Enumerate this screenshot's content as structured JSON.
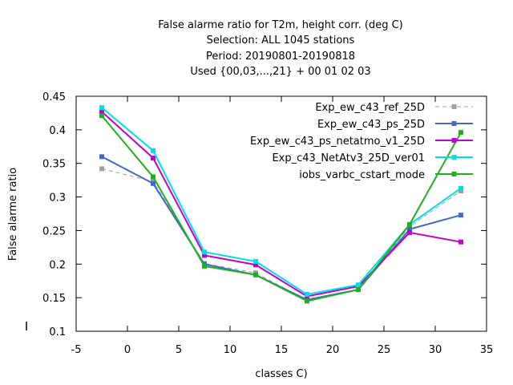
{
  "chart_data": {
    "type": "line",
    "title_lines": [
      "False alarme ratio  for T2m, height corr. (deg C)",
      "Selection: ALL    1045 stations",
      "Period: 20190801-20190818",
      "Used {00,03,...,21} + 00 01 02 03"
    ],
    "xlabel": "classes C)",
    "ylabel": "False alarme ratio",
    "xlim": [
      -5,
      35
    ],
    "ylim": [
      0.1,
      0.45
    ],
    "xticks": [
      -5,
      0,
      5,
      10,
      15,
      20,
      25,
      30,
      35
    ],
    "yticks": [
      0.1,
      0.15,
      0.2,
      0.25,
      0.3,
      0.35,
      0.4,
      0.45
    ],
    "ytick_labels": [
      "0.1",
      "0.15",
      "0.2",
      "0.25",
      "0.3",
      "0.35",
      "0.4",
      "0.45"
    ],
    "grid": false,
    "legend_position": "top-right",
    "x": [
      -2.5,
      2.5,
      7.5,
      12.5,
      17.5,
      22.5,
      27.5,
      32.5
    ],
    "series": [
      {
        "name": "Exp_ew_c43_ref_25D",
        "color": "#a0a0a0",
        "dashed": true,
        "values": [
          0.342,
          0.323,
          0.201,
          0.187,
          0.146,
          0.162,
          0.256,
          0.309
        ]
      },
      {
        "name": "Exp_ew_c43_ps_25D",
        "color": "#4169cd",
        "dashed": false,
        "values": [
          0.36,
          0.32,
          0.2,
          0.184,
          0.147,
          0.162,
          0.252,
          0.273
        ]
      },
      {
        "name": "Exp_ew_c43_ps_netatmo_v1_25D",
        "color": "#c000d0",
        "dashed": false,
        "values": [
          0.427,
          0.358,
          0.213,
          0.199,
          0.152,
          0.167,
          0.247,
          0.233
        ]
      },
      {
        "name": "Exp_c43_NetAtv3_25D_ver01",
        "color": "#00e0e0",
        "dashed": false,
        "values": [
          0.433,
          0.369,
          0.218,
          0.204,
          0.155,
          0.169,
          0.259,
          0.313
        ]
      },
      {
        "name": "iobs_varbc_cstart_mode",
        "color": "#20b020",
        "dashed": false,
        "values": [
          0.421,
          0.33,
          0.197,
          0.184,
          0.145,
          0.162,
          0.259,
          0.396
        ]
      }
    ]
  }
}
